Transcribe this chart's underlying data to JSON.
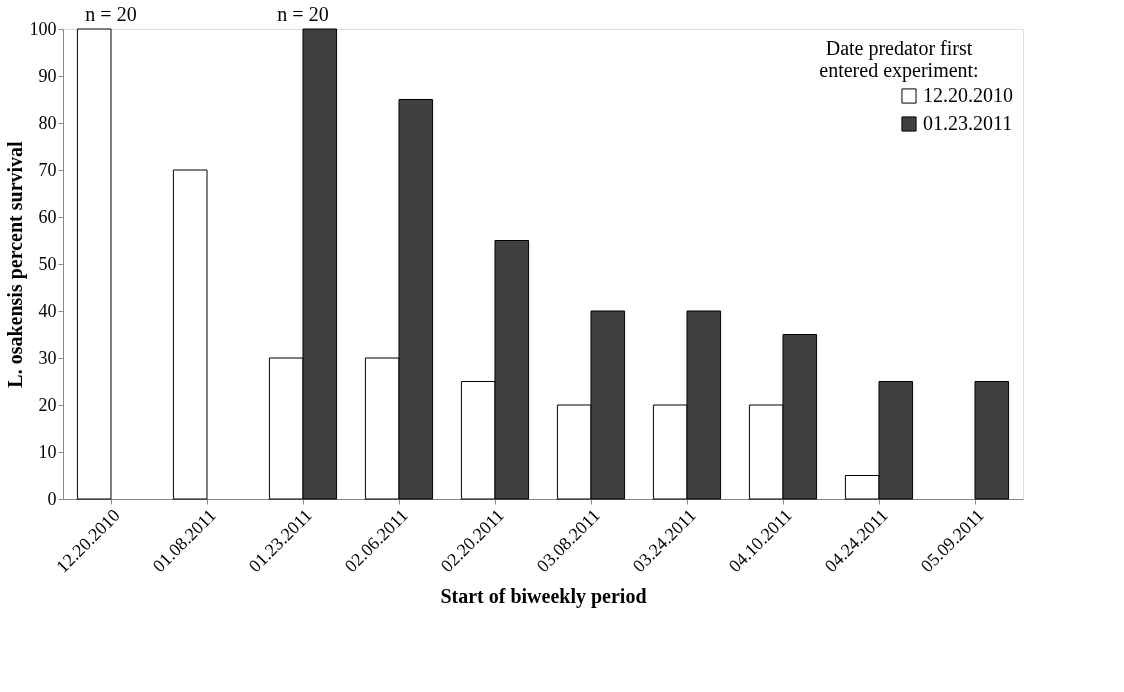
{
  "chart_data": {
    "type": "bar",
    "xlabel": "Start of biweekly period",
    "ylabel": "L. osakensis percent survival",
    "legend_title": "Date predator first entered experiment:",
    "categories": [
      "12.20.2010",
      "01.08.2011",
      "01.23.2011",
      "02.06.2011",
      "02.20.2011",
      "03.08.2011",
      "03.24.2011",
      "04.10.2011",
      "04.24.2011",
      "05.09.2011"
    ],
    "series": [
      {
        "name": "12.20.2010",
        "color": "#ffffff",
        "values": [
          100,
          70,
          30,
          30,
          25,
          20,
          20,
          20,
          5,
          null
        ]
      },
      {
        "name": "01.23.2011",
        "color": "#404040",
        "values": [
          null,
          null,
          100,
          85,
          55,
          40,
          40,
          35,
          25,
          25
        ]
      }
    ],
    "ylim": [
      0,
      100
    ],
    "yticks": [
      0,
      10,
      20,
      30,
      40,
      50,
      60,
      70,
      80,
      90,
      100
    ],
    "grid": false,
    "legend": "top right",
    "annotations": [
      {
        "text": "n = 20",
        "x": "12.20.2010",
        "y": 100
      },
      {
        "text": "n = 20",
        "x": "01.23.2011",
        "y": 100
      }
    ]
  }
}
